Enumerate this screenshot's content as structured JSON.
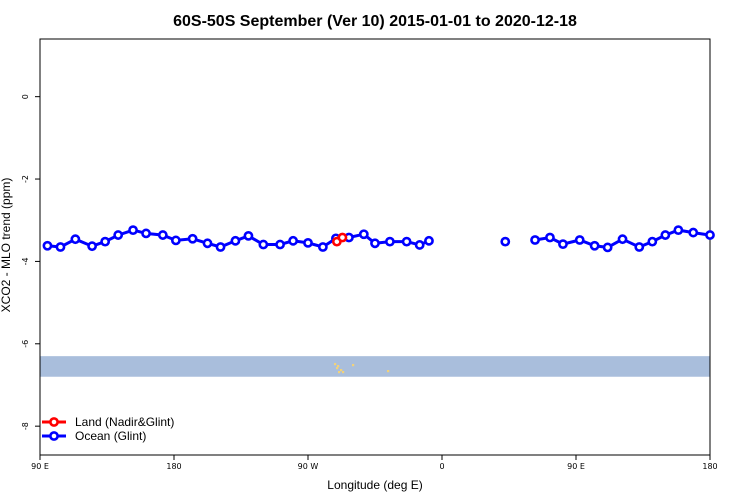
{
  "chart_data": {
    "type": "line",
    "title": "60S-50S September (Ver 10)   2015-01-01 to 2020-12-18",
    "xlabel": "Longitude (deg E)",
    "ylabel": "XCO2 - MLO trend (ppm)",
    "xlim": [
      90,
      450
    ],
    "ylim": [
      -8.7,
      1.4
    ],
    "x_ticks": [
      {
        "value": 90,
        "label": "90 E"
      },
      {
        "value": 162,
        "label": "180"
      },
      {
        "value": 234,
        "label": "90 W"
      },
      {
        "value": 306,
        "label": "0"
      },
      {
        "value": 378,
        "label": "90 E"
      },
      {
        "value": 450,
        "label": "180"
      }
    ],
    "y_ticks": [
      {
        "value": 0,
        "label": "0"
      },
      {
        "value": -2,
        "label": "-2"
      },
      {
        "value": -4,
        "label": "-4"
      },
      {
        "value": -6,
        "label": "-6"
      },
      {
        "value": -8,
        "label": "-8"
      }
    ],
    "grid": false,
    "legend_position": "bottom-left",
    "background_band": {
      "y_from": -6.3,
      "y_to": -6.8,
      "color": "#a9bedc"
    },
    "land_markers_color": "#f2d27a",
    "series": [
      {
        "name": "Land (Nadir&Glint)",
        "color": "#ff0000",
        "segments": [
          [
            [
              249.5,
              -3.52
            ],
            [
              252.5,
              -3.42
            ]
          ]
        ]
      },
      {
        "name": "Ocean (Glint)",
        "color": "#0000ff",
        "segments": [
          [
            [
              94,
              -3.62
            ],
            [
              101,
              -3.65
            ],
            [
              109,
              -3.46
            ],
            [
              118,
              -3.63
            ],
            [
              125,
              -3.52
            ],
            [
              132,
              -3.36
            ],
            [
              140,
              -3.24
            ],
            [
              147,
              -3.32
            ],
            [
              156,
              -3.36
            ],
            [
              163,
              -3.49
            ],
            [
              172,
              -3.45
            ],
            [
              180,
              -3.56
            ],
            [
              187,
              -3.65
            ],
            [
              195,
              -3.5
            ],
            [
              202,
              -3.38
            ],
            [
              210,
              -3.59
            ],
            [
              219,
              -3.59
            ],
            [
              226,
              -3.5
            ],
            [
              234,
              -3.55
            ],
            [
              242,
              -3.65
            ],
            [
              249,
              -3.44
            ],
            [
              256,
              -3.42
            ],
            [
              264,
              -3.34
            ],
            [
              270,
              -3.56
            ],
            [
              278,
              -3.52
            ],
            [
              287,
              -3.52
            ],
            [
              294,
              -3.6
            ],
            [
              299,
              -3.5
            ]
          ],
          [
            [
              340,
              -3.52
            ]
          ],
          [
            [
              356,
              -3.48
            ],
            [
              364,
              -3.42
            ],
            [
              371,
              -3.58
            ],
            [
              380,
              -3.48
            ],
            [
              388,
              -3.62
            ],
            [
              395,
              -3.66
            ],
            [
              403,
              -3.46
            ],
            [
              412,
              -3.65
            ],
            [
              419,
              -3.52
            ],
            [
              426,
              -3.36
            ],
            [
              433,
              -3.24
            ],
            [
              441,
              -3.3
            ],
            [
              450,
              -3.36
            ]
          ]
        ]
      }
    ]
  }
}
